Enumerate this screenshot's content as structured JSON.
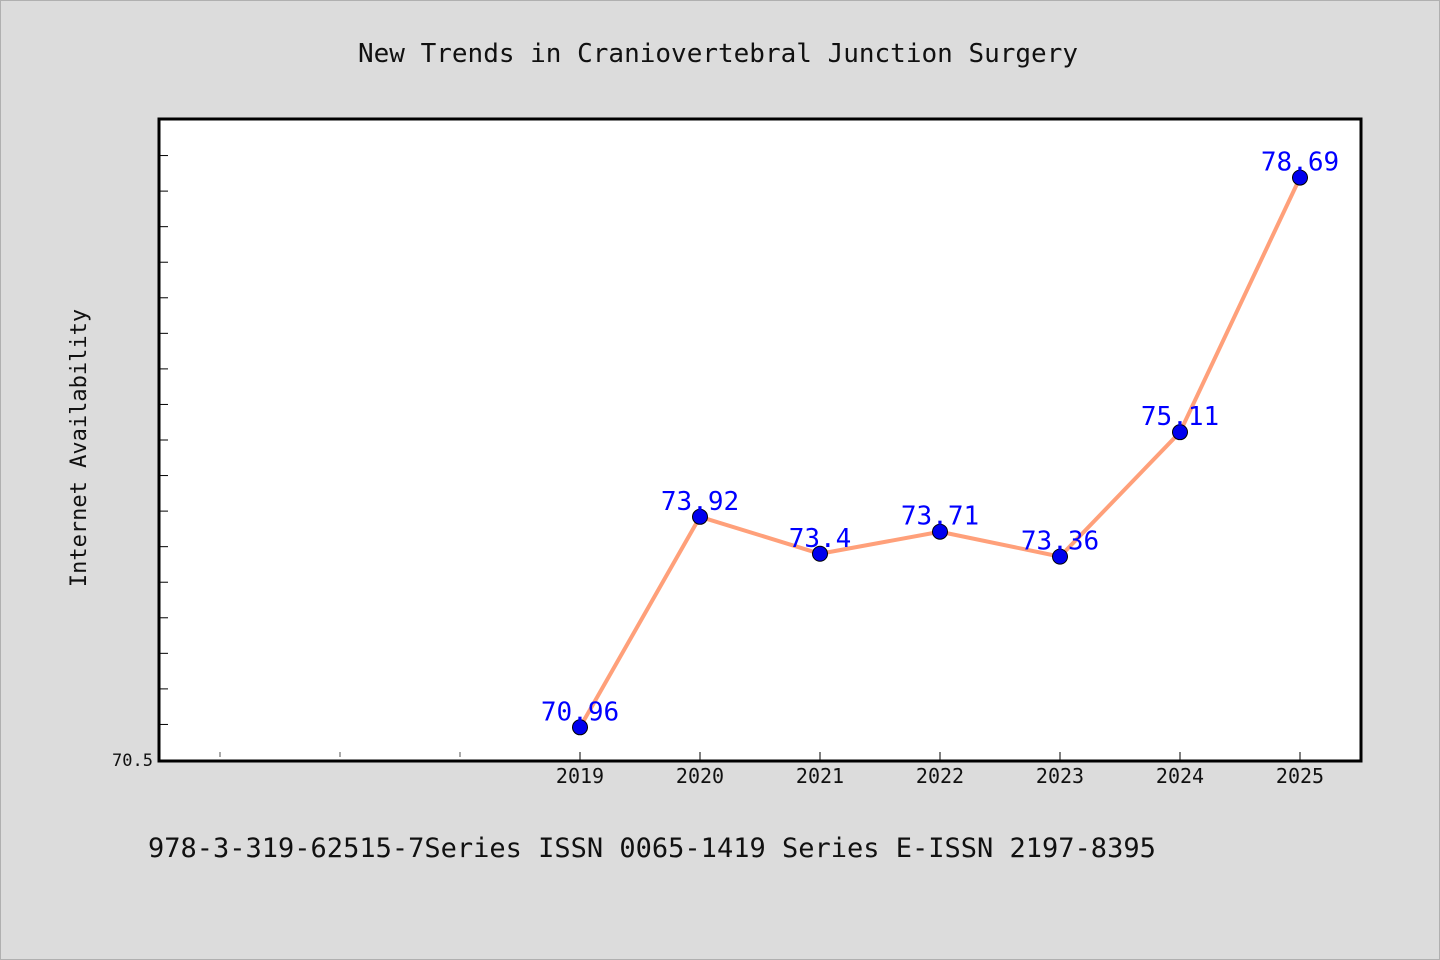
{
  "chart_data": {
    "type": "line",
    "title": "New Trends in Craniovertebral Junction Surgery",
    "xlabel": "",
    "ylabel": "Internet Availability",
    "categories": [
      "2019",
      "2020",
      "2021",
      "2022",
      "2023",
      "2024",
      "2025"
    ],
    "series": [
      {
        "values": [
          70.96,
          73.92,
          73.4,
          73.71,
          73.36,
          75.11,
          78.69
        ],
        "labels": [
          "70.96",
          "73.92",
          "73.4",
          "73.71",
          "73.36",
          "75.11",
          "78.69"
        ]
      }
    ],
    "y_tick_labels": [
      "70.5"
    ],
    "ylim": [
      70.5,
      79.5
    ],
    "grid": false,
    "line_color": "#ffa07a",
    "marker_color": "#0000ee",
    "label_color": "#0000ff"
  },
  "footer": "978-3-319-62515-7Series ISSN 0065-1419 Series E-ISSN 2197-8395"
}
